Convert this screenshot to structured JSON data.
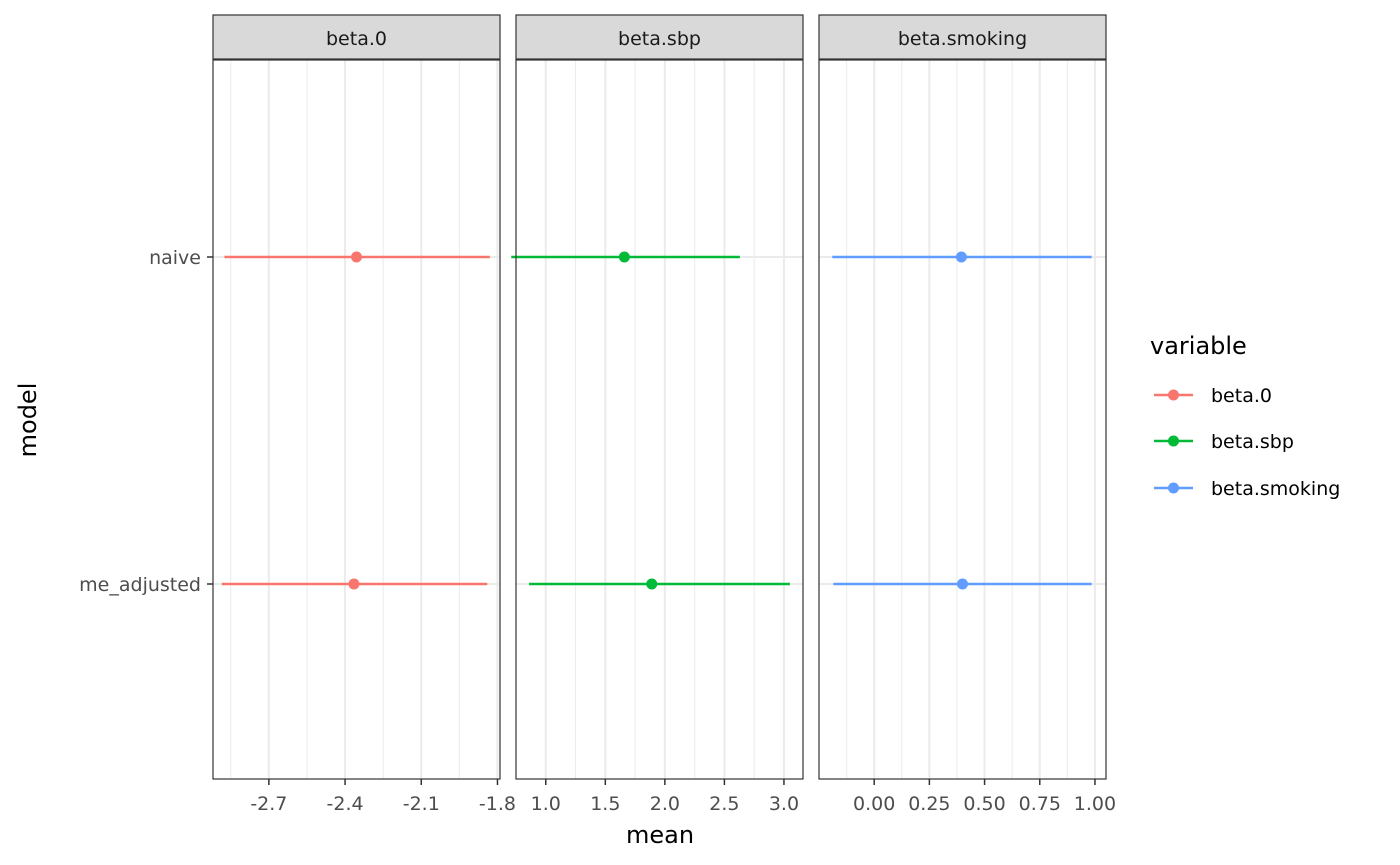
{
  "chart_data": {
    "type": "scatter",
    "subtype": "faceted-pointrange",
    "xlabel": "mean",
    "ylabel": "model",
    "categories": [
      "naive",
      "me_adjusted"
    ],
    "grid": true,
    "legend": {
      "title": "variable",
      "position": "right",
      "entries": [
        {
          "label": "beta.0",
          "color": "#F8766D"
        },
        {
          "label": "beta.sbp",
          "color": "#00BA38"
        },
        {
          "label": "beta.smoking",
          "color": "#619CFF"
        }
      ]
    },
    "facets": [
      {
        "label": "beta.0",
        "color": "#F8766D",
        "xlim": [
          -2.92,
          -1.79
        ],
        "ticks": [
          -2.7,
          -2.4,
          -2.1,
          -1.8
        ],
        "tick_labels": [
          "-2.7",
          "-2.4",
          "-2.1",
          "-1.8"
        ],
        "points": [
          {
            "model": "naive",
            "mean": -2.355,
            "lower": -2.875,
            "upper": -1.83
          },
          {
            "model": "me_adjusted",
            "mean": -2.365,
            "lower": -2.885,
            "upper": -1.84
          }
        ]
      },
      {
        "label": "beta.sbp",
        "color": "#00BA38",
        "xlim": [
          0.75,
          3.16
        ],
        "ticks": [
          1.0,
          1.5,
          2.0,
          2.5,
          3.0
        ],
        "tick_labels": [
          "1.0",
          "1.5",
          "2.0",
          "2.5",
          "3.0"
        ],
        "points": [
          {
            "model": "naive",
            "mean": 1.66,
            "lower": 0.71,
            "upper": 2.63
          },
          {
            "model": "me_adjusted",
            "mean": 1.89,
            "lower": 0.86,
            "upper": 3.05
          }
        ]
      },
      {
        "label": "beta.smoking",
        "color": "#619CFF",
        "xlim": [
          -0.25,
          1.05
        ],
        "ticks": [
          0.0,
          0.25,
          0.5,
          0.75,
          1.0
        ],
        "tick_labels": [
          "0.00",
          "0.25",
          "0.50",
          "0.75",
          "1.00"
        ],
        "points": [
          {
            "model": "naive",
            "mean": 0.395,
            "lower": -0.19,
            "upper": 0.985
          },
          {
            "model": "me_adjusted",
            "mean": 0.4,
            "lower": -0.185,
            "upper": 0.985
          }
        ]
      }
    ]
  }
}
